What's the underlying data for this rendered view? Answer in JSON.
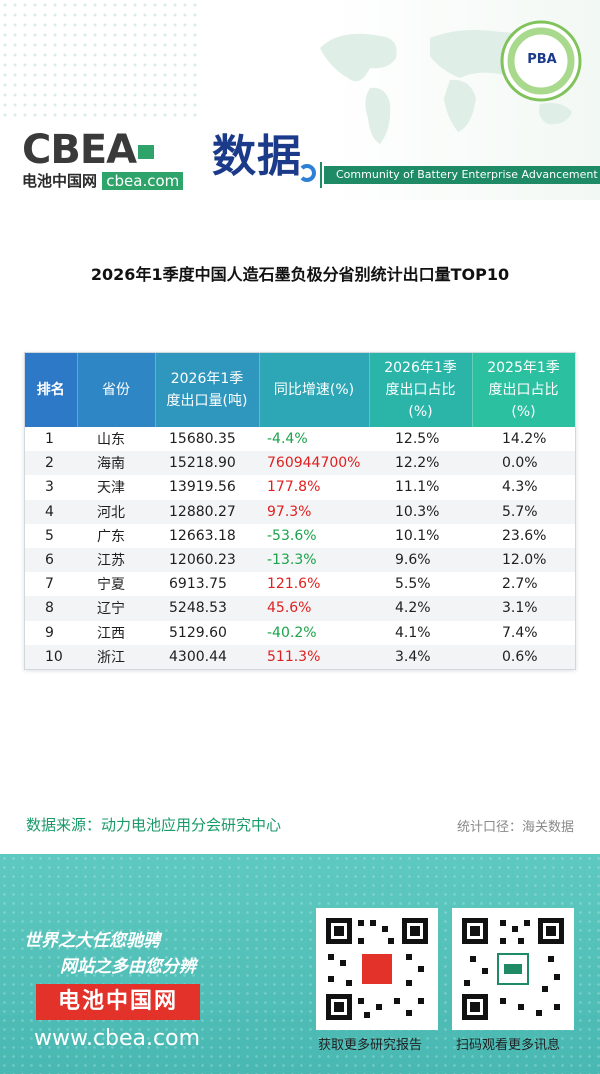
{
  "header": {
    "logo_text": "CBEA",
    "logo_sub_cn": "电池中国网",
    "logo_sub_url": "cbea.com",
    "logo_title": "数据",
    "community": "Community of Battery Enterprise Advancement",
    "badge_text": "PBA",
    "brand_color": "#1e8a66"
  },
  "title": "2026年1季度中国人造石墨负极分省别统计出口量TOP10",
  "table": {
    "headers": {
      "rank": "排名",
      "province": "省份",
      "volume_line1": "2026年1季",
      "volume_line2": "度出口量(吨)",
      "yoy": "同比增速(%)",
      "share26_line1": "2026年1季",
      "share26_line2": "度出口占比",
      "share26_line3": "(%)",
      "share25_line1": "2025年1季",
      "share25_line2": "度出口占比",
      "share25_line3": "(%)"
    },
    "rows": [
      {
        "rank": "1",
        "province": "山东",
        "volume": "15680.35",
        "yoy": "-4.4%",
        "yoy_sign": "neg",
        "share26": "12.5%",
        "share25": "14.2%"
      },
      {
        "rank": "2",
        "province": "海南",
        "volume": "15218.90",
        "yoy": "760944700%",
        "yoy_sign": "pos",
        "share26": "12.2%",
        "share25": "0.0%"
      },
      {
        "rank": "3",
        "province": "天津",
        "volume": "13919.56",
        "yoy": "177.8%",
        "yoy_sign": "pos",
        "share26": "11.1%",
        "share25": "4.3%"
      },
      {
        "rank": "4",
        "province": "河北",
        "volume": "12880.27",
        "yoy": "97.3%",
        "yoy_sign": "pos",
        "share26": "10.3%",
        "share25": "5.7%"
      },
      {
        "rank": "5",
        "province": "广东",
        "volume": "12663.18",
        "yoy": "-53.6%",
        "yoy_sign": "neg",
        "share26": "10.1%",
        "share25": "23.6%"
      },
      {
        "rank": "6",
        "province": "江苏",
        "volume": "12060.23",
        "yoy": "-13.3%",
        "yoy_sign": "neg",
        "share26": "9.6%",
        "share25": "12.0%"
      },
      {
        "rank": "7",
        "province": "宁夏",
        "volume": "6913.75",
        "yoy": "121.6%",
        "yoy_sign": "pos",
        "share26": "5.5%",
        "share25": "2.7%"
      },
      {
        "rank": "8",
        "province": "辽宁",
        "volume": "5248.53",
        "yoy": "45.6%",
        "yoy_sign": "pos",
        "share26": "4.2%",
        "share25": "3.1%"
      },
      {
        "rank": "9",
        "province": "江西",
        "volume": "5129.60",
        "yoy": "-40.2%",
        "yoy_sign": "neg",
        "share26": "4.1%",
        "share25": "7.4%"
      },
      {
        "rank": "10",
        "province": "浙江",
        "volume": "4300.44",
        "yoy": "511.3%",
        "yoy_sign": "pos",
        "share26": "3.4%",
        "share25": "0.6%"
      }
    ],
    "colors": {
      "positive": "#e02020",
      "negative": "#1aa34a"
    }
  },
  "source": "数据来源：动力电池应用分会研究中心",
  "stat_note": "统计口径：海关数据",
  "footer": {
    "slogan1": "世界之大任您驰骋",
    "slogan2": "网站之多由您分辨",
    "brand": "电池中国网",
    "url": "www.cbea.com",
    "qr1_caption": "获取更多研究报告",
    "qr2_caption": "扫码观看更多讯息"
  }
}
